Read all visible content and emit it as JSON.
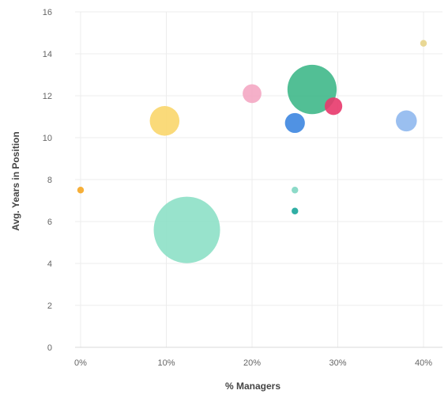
{
  "chart_data": {
    "type": "scatter",
    "title": "",
    "xlabel": "% Managers",
    "ylabel": "Avg. Years in Position",
    "xlim": [
      0,
      40
    ],
    "ylim": [
      0,
      16
    ],
    "x_ticks": [
      0,
      10,
      20,
      30,
      40
    ],
    "x_tick_labels": [
      "0%",
      "10%",
      "20%",
      "30%",
      "40%"
    ],
    "y_ticks": [
      0,
      2,
      4,
      6,
      8,
      10,
      12,
      14,
      16
    ],
    "y_tick_labels": [
      "0",
      "2",
      "4",
      "6",
      "8",
      "10",
      "12",
      "14",
      "16"
    ],
    "grid": true,
    "points": [
      {
        "x": 0,
        "y": 7.5,
        "size": 1,
        "color": "#f5a623"
      },
      {
        "x": 9.8,
        "y": 10.8,
        "size": 20,
        "color": "#f9d66b"
      },
      {
        "x": 12.4,
        "y": 5.6,
        "size": 100,
        "color": "#8de0c6"
      },
      {
        "x": 20,
        "y": 12.1,
        "size": 8,
        "color": "#f4a7c3"
      },
      {
        "x": 25,
        "y": 7.5,
        "size": 1,
        "color": "#7fd6c2"
      },
      {
        "x": 25,
        "y": 6.5,
        "size": 1,
        "color": "#1aa59a"
      },
      {
        "x": 25,
        "y": 10.7,
        "size": 9,
        "color": "#3d86e0"
      },
      {
        "x": 27,
        "y": 12.3,
        "size": 55,
        "color": "#3fb88a"
      },
      {
        "x": 29.5,
        "y": 11.5,
        "size": 7,
        "color": "#e8386b"
      },
      {
        "x": 38,
        "y": 10.8,
        "size": 10,
        "color": "#8fb8ee"
      },
      {
        "x": 40,
        "y": 14.5,
        "size": 1,
        "color": "#e7d48a"
      }
    ]
  }
}
